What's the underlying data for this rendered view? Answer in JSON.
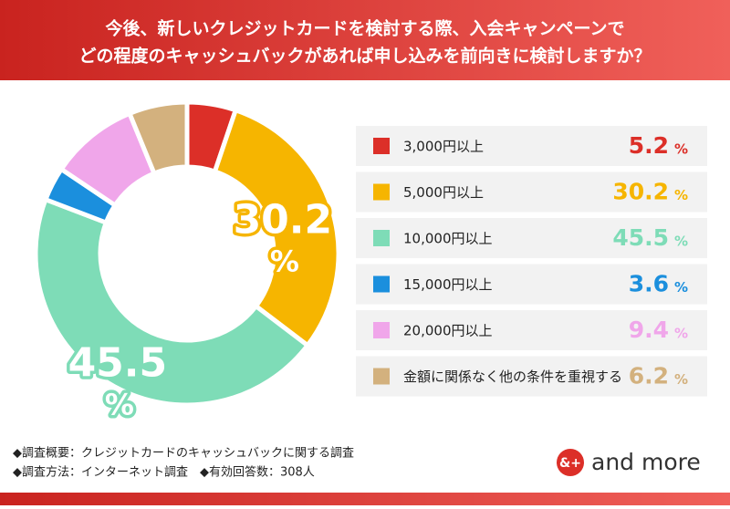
{
  "header": {
    "title_lines": [
      "今後、新しいクレジットカードを検討する際、入会キャンペーンで",
      "どの程度のキャッシュバックがあれば申し込みを前向きに検討しますか？"
    ]
  },
  "chart_data": {
    "type": "donut",
    "categories": [
      "3,000円以上",
      "5,000円以上",
      "10,000円以上",
      "15,000円以上",
      "20,000円以上",
      "金額に関係なく他の条件を重視する"
    ],
    "values": [
      5.2,
      30.2,
      45.5,
      3.6,
      9.4,
      6.2
    ],
    "colors": [
      "#dc2f28",
      "#f6b500",
      "#7edcb7",
      "#1b8fdd",
      "#f0a6ea",
      "#d3b17e"
    ],
    "value_unit": "%"
  },
  "footer": {
    "notes": [
      "◆調査概要：クレジットカードのキャッシュバックに関する調査",
      "◆調査方法：インターネット調査　◆有効回答数：308人"
    ],
    "logo_icon": "&+",
    "logo_text": "and more"
  }
}
